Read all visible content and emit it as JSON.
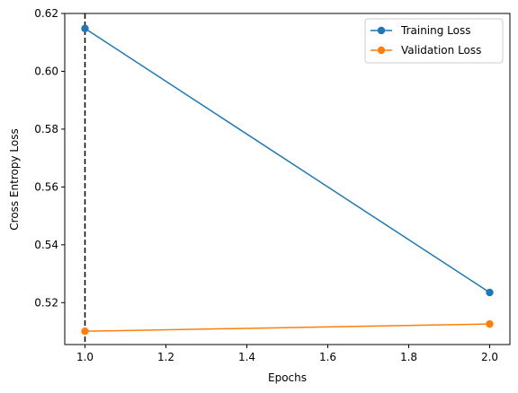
{
  "chart_data": {
    "type": "line",
    "title": "",
    "xlabel": "Epochs",
    "ylabel": "Cross Entropy Loss",
    "xlim": [
      0.95,
      2.05
    ],
    "ylim": [
      0.5055,
      0.62
    ],
    "xticks": [
      1.0,
      1.2,
      1.4,
      1.6,
      1.8,
      2.0
    ],
    "xtick_labels": [
      "1.0",
      "1.2",
      "1.4",
      "1.6",
      "1.8",
      "2.0"
    ],
    "yticks": [
      0.52,
      0.54,
      0.56,
      0.58,
      0.6,
      0.62
    ],
    "ytick_labels": [
      "0.52",
      "0.54",
      "0.56",
      "0.58",
      "0.60",
      "0.62"
    ],
    "grid": false,
    "legend_position": "top-right",
    "vline": {
      "x": 1.0,
      "style": "dashed",
      "color": "#000000"
    },
    "series": [
      {
        "name": "Training Loss",
        "color": "#1f77b4",
        "x": [
          1.0,
          2.0
        ],
        "y": [
          0.6148,
          0.5235
        ]
      },
      {
        "name": "Validation Loss",
        "color": "#ff7f0e",
        "x": [
          1.0,
          2.0
        ],
        "y": [
          0.5101,
          0.5126
        ]
      }
    ]
  }
}
